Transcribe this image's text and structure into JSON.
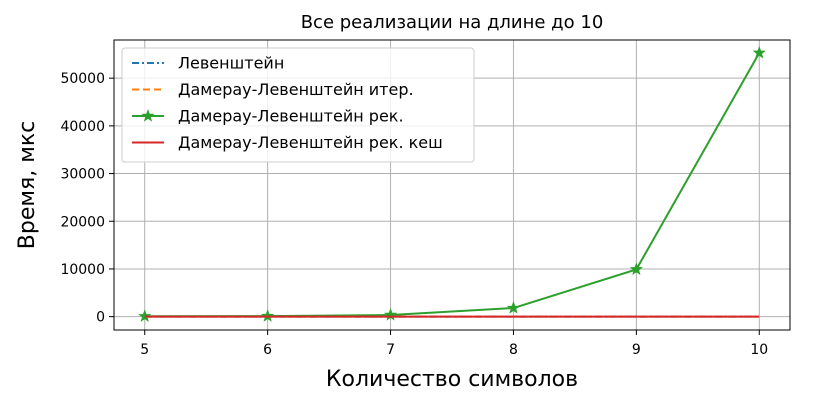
{
  "chart_data": {
    "type": "line",
    "title": "Все реализации на длине до 10",
    "xlabel": "Количество символов",
    "ylabel": "Время, мкс",
    "x": [
      5,
      6,
      7,
      8,
      9,
      10
    ],
    "xlim": [
      4.75,
      10.25
    ],
    "ylim": [
      -2800,
      58000
    ],
    "xticks": [
      5,
      6,
      7,
      8,
      9,
      10
    ],
    "yticks": [
      0,
      10000,
      20000,
      30000,
      40000,
      50000
    ],
    "grid": true,
    "legend_position": "top-left",
    "series": [
      {
        "name": "Левенштейн",
        "color": "#1f77b4",
        "style": "dashdot",
        "marker": "none",
        "values": [
          2,
          3,
          3,
          4,
          5,
          6
        ]
      },
      {
        "name": "Дамерау-Левенштейн итер.",
        "color": "#ff7f0e",
        "style": "dashed",
        "marker": "none",
        "values": [
          3,
          4,
          5,
          6,
          7,
          8
        ]
      },
      {
        "name": "Дамерау-Левенштейн рек.",
        "color": "#2ca02c",
        "style": "solid",
        "marker": "star",
        "values": [
          70,
          100,
          350,
          1800,
          9900,
          55300
        ]
      },
      {
        "name": "Дамерау-Левенштейн рек. кеш",
        "color": "#d62728",
        "style": "solid",
        "marker": "none",
        "values": [
          5,
          6,
          7,
          8,
          9,
          10
        ]
      }
    ]
  }
}
